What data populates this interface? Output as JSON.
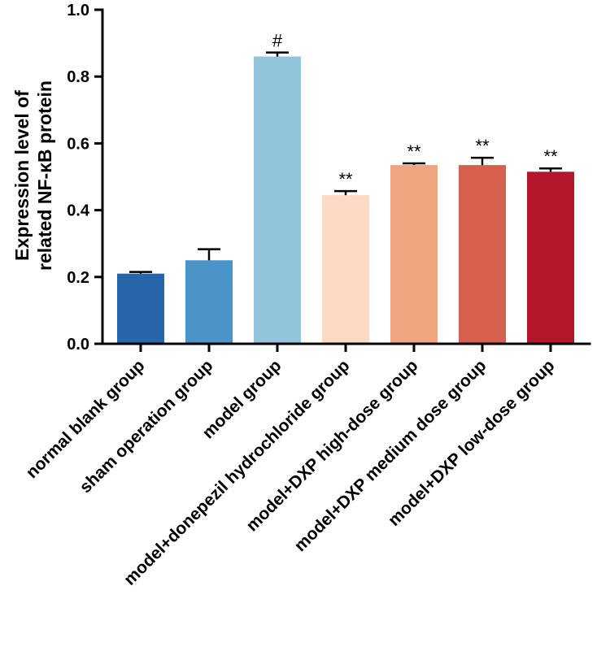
{
  "chart_data": {
    "type": "bar",
    "title": "",
    "xlabel": "",
    "ylabel_lines": [
      "Expression level of",
      "related NF-κB protein"
    ],
    "ylim": [
      0,
      1.0
    ],
    "yticks": [
      "0.0",
      "0.2",
      "0.4",
      "0.6",
      "0.8",
      "1.0"
    ],
    "grid": false,
    "categories": [
      "normal blank group",
      "sham operation group",
      "model group",
      "model+donepezil hydrochloride group",
      "model+DXP high-dose group",
      "model+DXP medium dose group",
      "model+DXP low-dose group"
    ],
    "values": [
      0.21,
      0.25,
      0.86,
      0.445,
      0.535,
      0.535,
      0.515
    ],
    "errors": [
      0.005,
      0.033,
      0.012,
      0.012,
      0.005,
      0.022,
      0.01
    ],
    "significance": [
      "",
      "",
      "#",
      "**",
      "**",
      "**",
      "**"
    ],
    "colors": [
      "#2766ab",
      "#4a94c8",
      "#92c5dc",
      "#fcdac6",
      "#f0a480",
      "#d6604d",
      "#b2172c"
    ]
  }
}
